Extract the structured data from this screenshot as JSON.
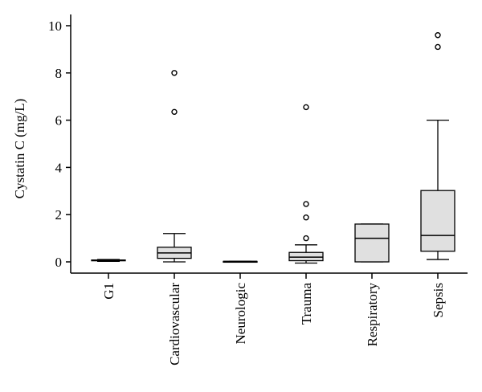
{
  "chart_data": {
    "type": "box",
    "ylabel": "Cystatin C (mg/L)",
    "xlabel": "",
    "ylim": [
      0,
      10
    ],
    "yticks": [
      0,
      2,
      4,
      6,
      8,
      10
    ],
    "categories": [
      "G1",
      "Cardiovascular",
      "Neurologic",
      "Trauma",
      "Respiratory",
      "Sepsis"
    ],
    "boxes": [
      {
        "category": "G1",
        "min": 0.02,
        "q1": 0.05,
        "median": 0.06,
        "q3": 0.08,
        "max": 0.1,
        "outliers": []
      },
      {
        "category": "Cardiovascular",
        "min": 0.0,
        "q1": 0.15,
        "median": 0.38,
        "q3": 0.62,
        "max": 1.2,
        "outliers": [
          6.35,
          8.0
        ]
      },
      {
        "category": "Neurologic",
        "min": 0.02,
        "q1": 0.02,
        "median": 0.02,
        "q3": 0.02,
        "max": 0.02,
        "outliers": []
      },
      {
        "category": "Trauma",
        "min": -0.05,
        "q1": 0.05,
        "median": 0.2,
        "q3": 0.4,
        "max": 0.72,
        "outliers": [
          1.0,
          1.88,
          2.45,
          6.55
        ]
      },
      {
        "category": "Respiratory",
        "min": 0.0,
        "q1": 0.0,
        "median": 1.0,
        "q3": 1.6,
        "max": 1.6,
        "outliers": []
      },
      {
        "category": "Sepsis",
        "min": 0.1,
        "q1": 0.45,
        "median": 1.12,
        "q3": 3.02,
        "max": 6.0,
        "outliers": [
          9.1,
          9.6
        ]
      }
    ],
    "colors": {
      "box_fill": "#e0e0e0",
      "stroke": "#000000"
    },
    "grid": false,
    "legend": "none"
  }
}
